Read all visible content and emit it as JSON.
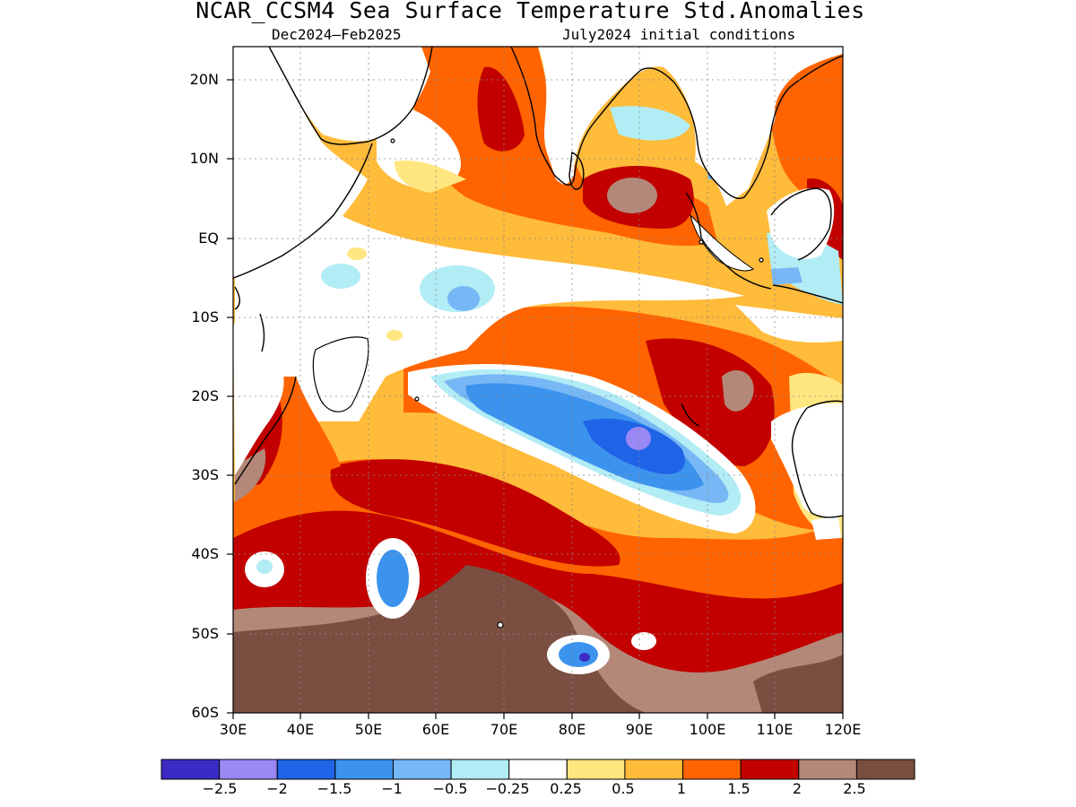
{
  "header": {
    "title": "NCAR_CCSM4 Sea Surface Temperature Std.Anomalies",
    "period": "Dec2024–Feb2025",
    "initial_conditions": "July2024 initial conditions"
  },
  "map": {
    "lat_labels": [
      "20N",
      "10N",
      "EQ",
      "10S",
      "20S",
      "30S",
      "40S",
      "50S",
      "60S"
    ],
    "lon_labels": [
      "30E",
      "40E",
      "50E",
      "60E",
      "70E",
      "80E",
      "90E",
      "100E",
      "110E",
      "120E"
    ],
    "lat_range": [
      -60,
      24
    ],
    "lon_range": [
      30,
      120
    ]
  },
  "colorbar": {
    "labels": [
      "−2.5",
      "−2",
      "−1.5",
      "−1",
      "−0.5",
      "−0.25",
      "0.25",
      "0.5",
      "1",
      "1.5",
      "2",
      "2.5"
    ],
    "colors": [
      "#3b2bc4",
      "#9a88f4",
      "#1f63e6",
      "#3c93ee",
      "#77b7f5",
      "#b2ecf5",
      "#ffffff",
      "#ffe680",
      "#ffbb3a",
      "#ff6400",
      "#c20000",
      "#b48878",
      "#7a4e40"
    ]
  }
}
